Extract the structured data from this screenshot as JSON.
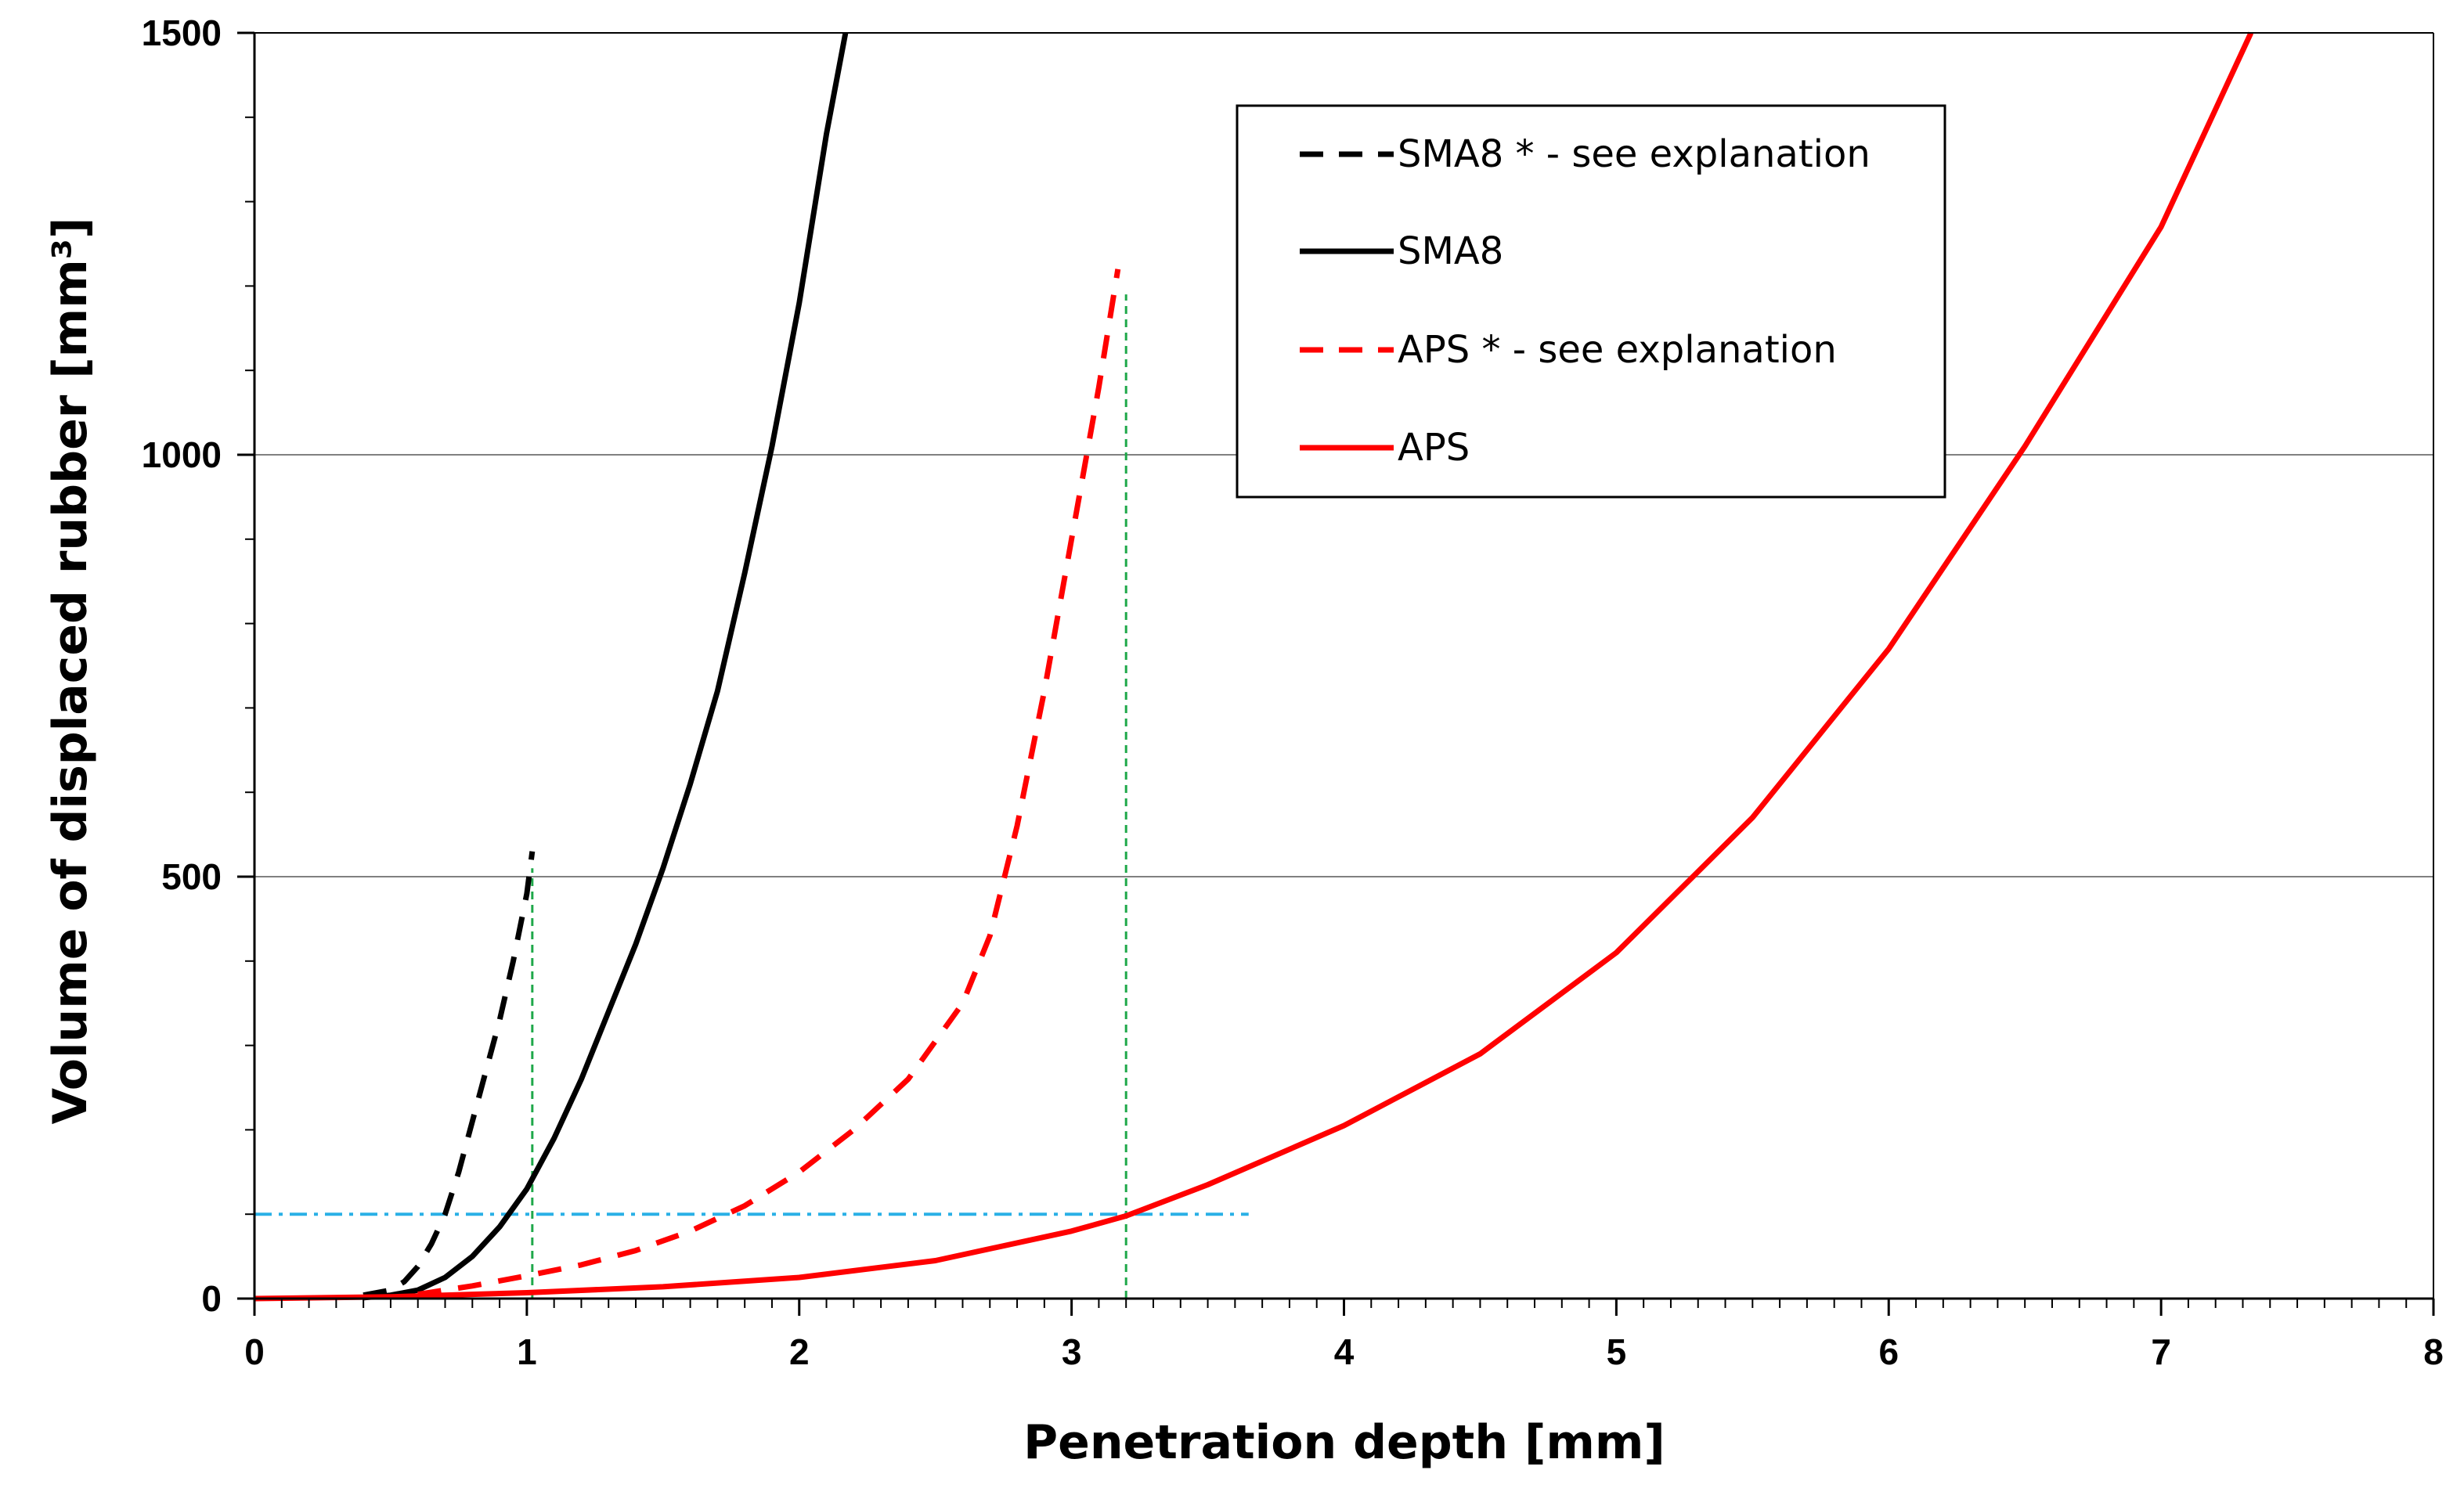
{
  "chart_data": {
    "type": "line",
    "title": "",
    "xlabel": "Penetration depth [mm]",
    "ylabel": "Volume of displaced rubber [mm³]",
    "xlim": [
      0,
      8
    ],
    "ylim": [
      0,
      1500
    ],
    "x_ticks": [
      "0",
      "1",
      "2",
      "3",
      "4",
      "5",
      "6",
      "7",
      "8"
    ],
    "y_ticks": [
      "0",
      "500",
      "1000",
      "1500"
    ],
    "x_minor_step": 0.1,
    "y_minor_step": 100,
    "grid": "horizontal major lines at 500, 1000",
    "legend_position": "top-right",
    "colors": {
      "black": "#000000",
      "red": "#ff0000",
      "green": "#1fa84a",
      "cyan": "#2ab0e6",
      "grid": "#808080"
    },
    "series": [
      {
        "name": "SMA8 * - see explanation",
        "style": "dashed",
        "color": "#000000",
        "x": [
          0.4,
          0.5,
          0.55,
          0.6,
          0.65,
          0.7,
          0.75,
          0.8,
          0.85,
          0.9,
          0.95,
          1.0,
          1.02
        ],
        "y": [
          4,
          10,
          20,
          38,
          65,
          100,
          150,
          210,
          270,
          330,
          400,
          480,
          530
        ]
      },
      {
        "name": "SMA8",
        "style": "solid",
        "color": "#000000",
        "x": [
          0.4,
          0.5,
          0.6,
          0.7,
          0.8,
          0.9,
          1.0,
          1.1,
          1.2,
          1.3,
          1.4,
          1.5,
          1.6,
          1.7,
          1.8,
          1.9,
          2.0,
          2.1,
          2.17
        ],
        "y": [
          1,
          4,
          10,
          25,
          50,
          85,
          130,
          190,
          260,
          340,
          420,
          510,
          610,
          720,
          860,
          1010,
          1180,
          1380,
          1500
        ]
      },
      {
        "name": "APS * - see explanation",
        "style": "dashed",
        "color": "#ff0000",
        "x": [
          0.6,
          0.8,
          1.0,
          1.2,
          1.4,
          1.6,
          1.8,
          2.0,
          2.2,
          2.4,
          2.6,
          2.7,
          2.8,
          2.9,
          3.0,
          3.1,
          3.17
        ],
        "y": [
          5,
          15,
          27,
          40,
          57,
          80,
          110,
          150,
          200,
          260,
          350,
          430,
          560,
          720,
          900,
          1080,
          1220
        ]
      },
      {
        "name": "APS",
        "style": "solid",
        "color": "#ff0000",
        "x": [
          0.0,
          0.5,
          1.0,
          1.5,
          2.0,
          2.5,
          3.0,
          3.2,
          3.5,
          4.0,
          4.5,
          5.0,
          5.5,
          6.0,
          6.5,
          7.0,
          7.33
        ],
        "y": [
          0,
          2,
          7,
          14,
          25,
          45,
          80,
          98,
          135,
          205,
          290,
          410,
          570,
          770,
          1010,
          1270,
          1500
        ]
      }
    ],
    "annotations": [
      {
        "type": "vertical-dashed",
        "color": "#1fa84a",
        "x": 1.02,
        "y_from": 0,
        "y_to": 510
      },
      {
        "type": "vertical-dashed",
        "color": "#1fa84a",
        "x": 3.2,
        "y_from": 0,
        "y_to": 1190
      },
      {
        "type": "horizontal-dashdot",
        "color": "#2ab0e6",
        "y": 100,
        "x_from": 0.0,
        "x_to": 3.65
      }
    ]
  }
}
